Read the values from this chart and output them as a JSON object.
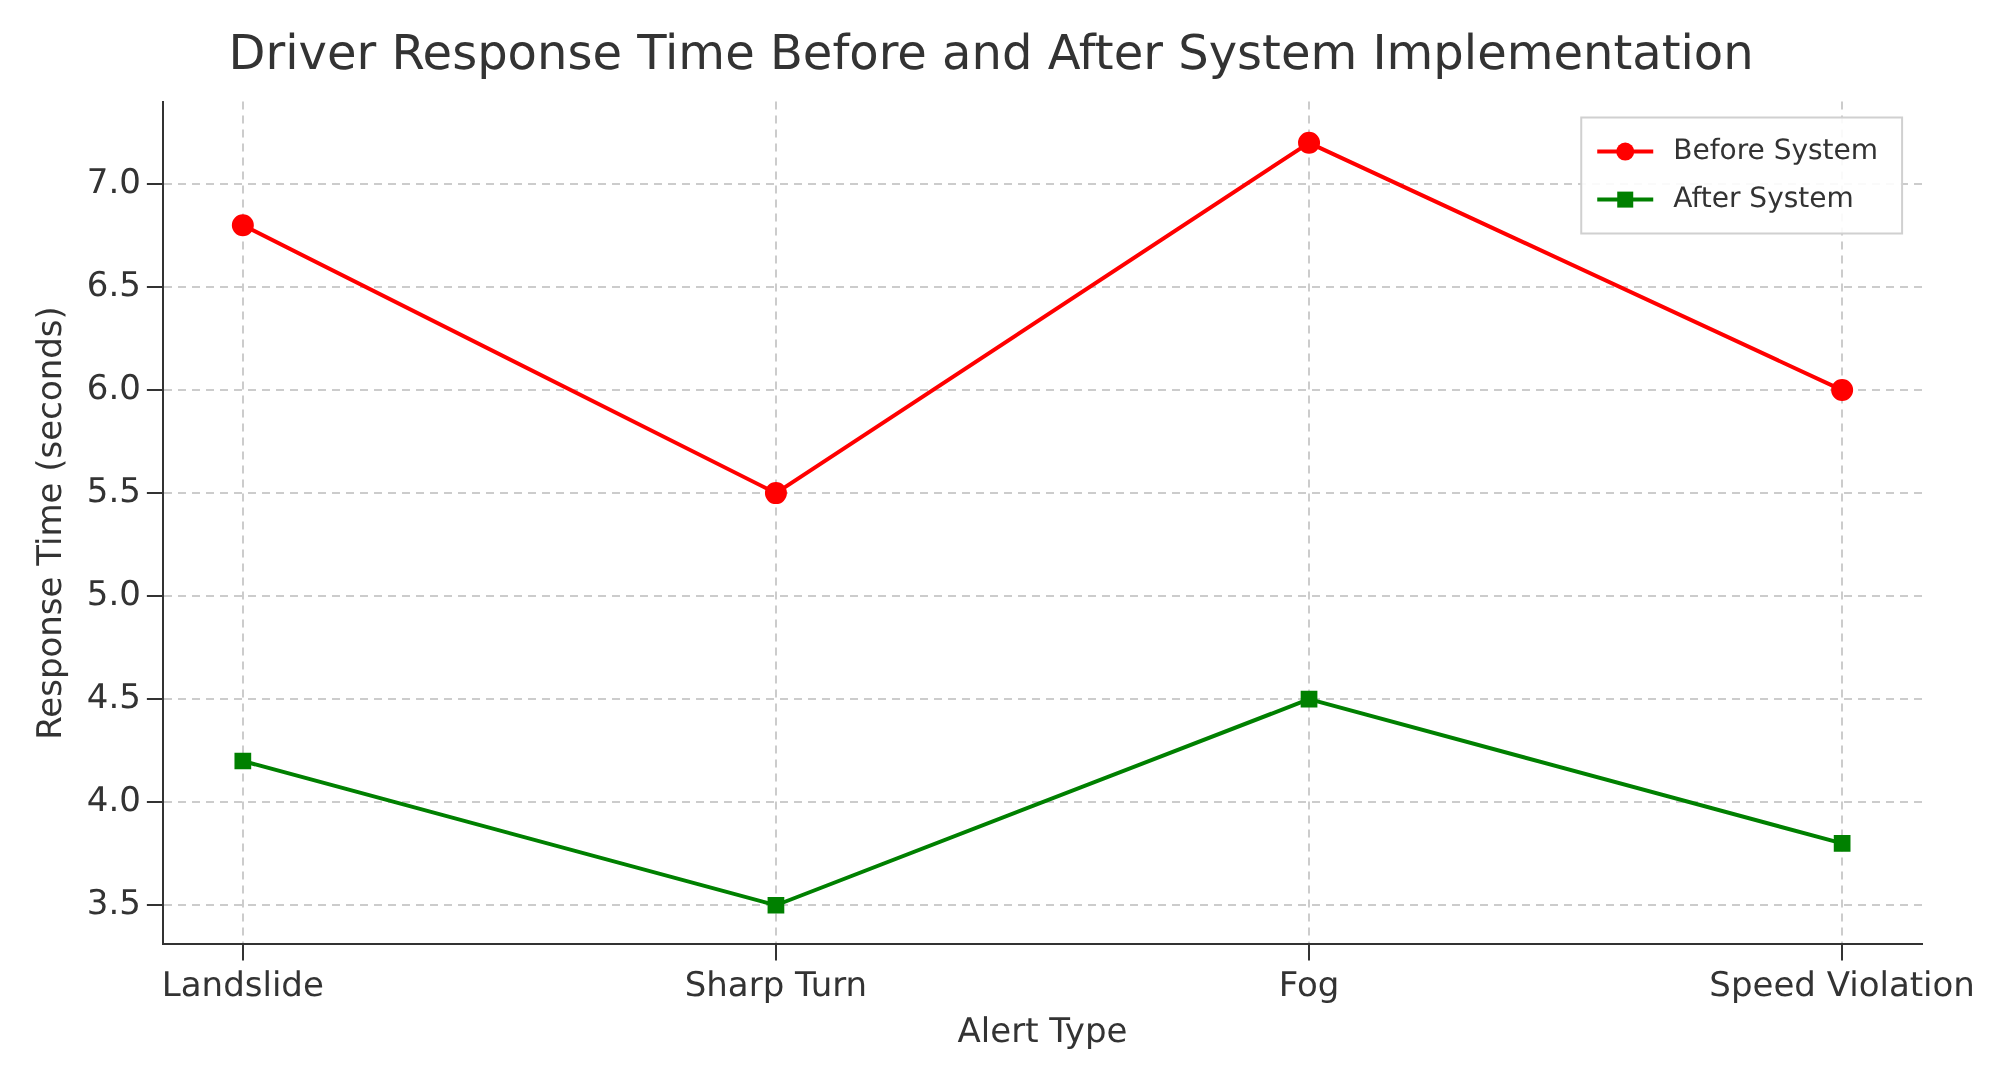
{
  "chart_data": {
    "type": "line",
    "title": "Driver Response Time Before and After System Implementation",
    "xlabel": "Alert Type",
    "ylabel": "Response Time (seconds)",
    "categories": [
      "Landslide",
      "Sharp Turn",
      "Fog",
      "Speed Violation"
    ],
    "series": [
      {
        "name": "Before System",
        "color": "#ff0000",
        "values": [
          6.8,
          5.5,
          7.2,
          6.0
        ],
        "marker": "circle"
      },
      {
        "name": "After System",
        "color": "#008000",
        "values": [
          4.2,
          3.5,
          4.5,
          3.8
        ],
        "marker": "square"
      }
    ],
    "ylim": [
      3.31,
      7.4
    ],
    "yticks": [
      {
        "value": 3.5,
        "label": "3.5"
      },
      {
        "value": 4,
        "label": "4.0"
      },
      {
        "value": 4.5,
        "label": "4.5"
      },
      {
        "value": 5,
        "label": "5.0"
      },
      {
        "value": 5.5,
        "label": "5.5"
      },
      {
        "value": 6,
        "label": "6.0"
      },
      {
        "value": 6.5,
        "label": "6.5"
      },
      {
        "value": 7,
        "label": "7.0"
      }
    ],
    "grid": true,
    "legend": "top right",
    "line_style": "solid"
  }
}
